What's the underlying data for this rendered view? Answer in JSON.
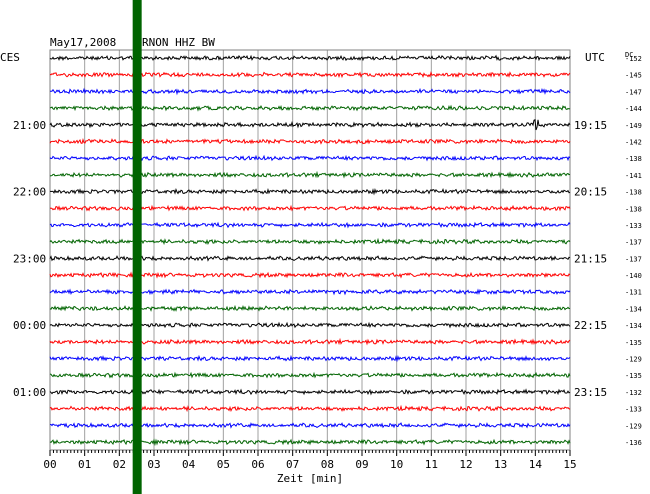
{
  "header": {
    "date": "May17,2008",
    "station": "RNON HHZ BW",
    "left_zone": "CES",
    "right_zone": "UTC",
    "dc_label": "DC"
  },
  "chart_data": {
    "type": "line",
    "title": "May17,2008 RNON HHZ BW",
    "xlabel": "Zeit [min]",
    "x_ticks": [
      "00",
      "01",
      "02",
      "03",
      "04",
      "05",
      "06",
      "07",
      "08",
      "09",
      "10",
      "11",
      "12",
      "13",
      "14",
      "15"
    ],
    "xlim": [
      0,
      15
    ],
    "trace_count": 24,
    "trace_colors": [
      "#000000",
      "#ff0000",
      "#0000ff",
      "#006400"
    ],
    "left_time_labels": [
      {
        "trace": 4,
        "label": "21:00"
      },
      {
        "trace": 8,
        "label": "22:00"
      },
      {
        "trace": 12,
        "label": "23:00"
      },
      {
        "trace": 16,
        "label": "00:00"
      },
      {
        "trace": 20,
        "label": "01:00"
      }
    ],
    "right_time_labels": [
      {
        "trace": 4,
        "label": "19:15"
      },
      {
        "trace": 8,
        "label": "20:15"
      },
      {
        "trace": 12,
        "label": "21:15"
      },
      {
        "trace": 16,
        "label": "22:15"
      },
      {
        "trace": 20,
        "label": "23:15"
      }
    ],
    "dc_offsets": [
      "-152",
      "-145",
      "-147",
      "-144",
      "-149",
      "-142",
      "-138",
      "-141",
      "-138",
      "-138",
      "-133",
      "-137",
      "-137",
      "-140",
      "-131",
      "-134",
      "-134",
      "-135",
      "-129",
      "-135",
      "-132",
      "-133",
      "-129",
      "-136"
    ],
    "marker": {
      "x_min": 2.5,
      "color": "#006400"
    },
    "event": {
      "trace": 4,
      "x_min": 14.0
    },
    "grid": true
  }
}
